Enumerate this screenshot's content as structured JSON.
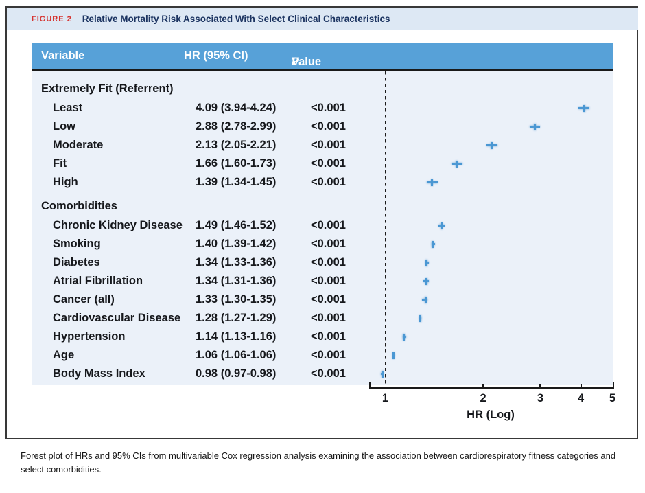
{
  "figure_header": {
    "label": "FIGURE 2",
    "title": "Relative Mortality Risk Associated With Select Clinical Characteristics"
  },
  "table": {
    "columns": {
      "variable": "Variable",
      "hr": "HR (95% CI)",
      "p_italic": "P",
      "p_rest": " Value"
    },
    "sections": [
      {
        "header": "Extremely Fit (Referrent)",
        "rows": [
          {
            "variable": "Least",
            "hr_ci": "4.09 (3.94-4.24)",
            "p": "<0.001"
          },
          {
            "variable": "Low",
            "hr_ci": "2.88 (2.78-2.99)",
            "p": "<0.001"
          },
          {
            "variable": "Moderate",
            "hr_ci": "2.13 (2.05-2.21)",
            "p": "<0.001"
          },
          {
            "variable": "Fit",
            "hr_ci": "1.66 (1.60-1.73)",
            "p": "<0.001"
          },
          {
            "variable": "High",
            "hr_ci": "1.39 (1.34-1.45)",
            "p": "<0.001"
          }
        ]
      },
      {
        "header": "Comorbidities",
        "rows": [
          {
            "variable": "Chronic Kidney Disease",
            "hr_ci": "1.49 (1.46-1.52)",
            "p": "<0.001"
          },
          {
            "variable": "Smoking",
            "hr_ci": "1.40 (1.39-1.42)",
            "p": "<0.001"
          },
          {
            "variable": "Diabetes",
            "hr_ci": "1.34 (1.33-1.36)",
            "p": "<0.001"
          },
          {
            "variable": "Atrial Fibrillation",
            "hr_ci": "1.34 (1.31-1.36)",
            "p": "<0.001"
          },
          {
            "variable": "Cancer (all)",
            "hr_ci": "1.33 (1.30-1.35)",
            "p": "<0.001"
          },
          {
            "variable": "Cardiovascular Disease",
            "hr_ci": "1.28 (1.27-1.29)",
            "p": "<0.001"
          },
          {
            "variable": "Hypertension",
            "hr_ci": "1.14 (1.13-1.16)",
            "p": "<0.001"
          },
          {
            "variable": "Age",
            "hr_ci": "1.06 (1.06-1.06)",
            "p": "<0.001"
          },
          {
            "variable": "Body Mass Index",
            "hr_ci": "0.98 (0.97-0.98)",
            "p": "<0.001"
          }
        ]
      }
    ]
  },
  "chart_data": {
    "type": "scatter",
    "subtype": "forest-plot",
    "xlabel": "HR (Log)",
    "x_scale": "log",
    "x_ticks": [
      1,
      2,
      3,
      4,
      5
    ],
    "xlim": [
      0.89,
      5
    ],
    "reference_line_x": 1,
    "grid": false,
    "points": [
      {
        "label": "Least",
        "hr": 4.09,
        "lo": 3.94,
        "hi": 4.24
      },
      {
        "label": "Low",
        "hr": 2.88,
        "lo": 2.78,
        "hi": 2.99
      },
      {
        "label": "Moderate",
        "hr": 2.13,
        "lo": 2.05,
        "hi": 2.21
      },
      {
        "label": "Fit",
        "hr": 1.66,
        "lo": 1.6,
        "hi": 1.73
      },
      {
        "label": "High",
        "hr": 1.39,
        "lo": 1.34,
        "hi": 1.45
      },
      {
        "label": "Chronic Kidney Disease",
        "hr": 1.49,
        "lo": 1.46,
        "hi": 1.52
      },
      {
        "label": "Smoking",
        "hr": 1.4,
        "lo": 1.39,
        "hi": 1.42
      },
      {
        "label": "Diabetes",
        "hr": 1.34,
        "lo": 1.33,
        "hi": 1.36
      },
      {
        "label": "Atrial Fibrillation",
        "hr": 1.34,
        "lo": 1.31,
        "hi": 1.36
      },
      {
        "label": "Cancer (all)",
        "hr": 1.33,
        "lo": 1.3,
        "hi": 1.35
      },
      {
        "label": "Cardiovascular Disease",
        "hr": 1.28,
        "lo": 1.27,
        "hi": 1.29
      },
      {
        "label": "Hypertension",
        "hr": 1.14,
        "lo": 1.13,
        "hi": 1.16
      },
      {
        "label": "Age",
        "hr": 1.06,
        "lo": 1.06,
        "hi": 1.06
      },
      {
        "label": "Body Mass Index",
        "hr": 0.98,
        "lo": 0.97,
        "hi": 0.98
      }
    ]
  },
  "caption": "Forest plot of HRs and 95% CIs from multivariable Cox regression analysis examining the association between cardiorespiratory fitness categories and select comorbidities.",
  "colors": {
    "header_bg": "#57a1d8",
    "body_bg": "#ebf1f9",
    "band_bg": "#dde8f4",
    "marker": "#4a97d3",
    "figure_label_red": "#d6332f",
    "title_navy": "#1c3461",
    "text": "#16181c"
  }
}
